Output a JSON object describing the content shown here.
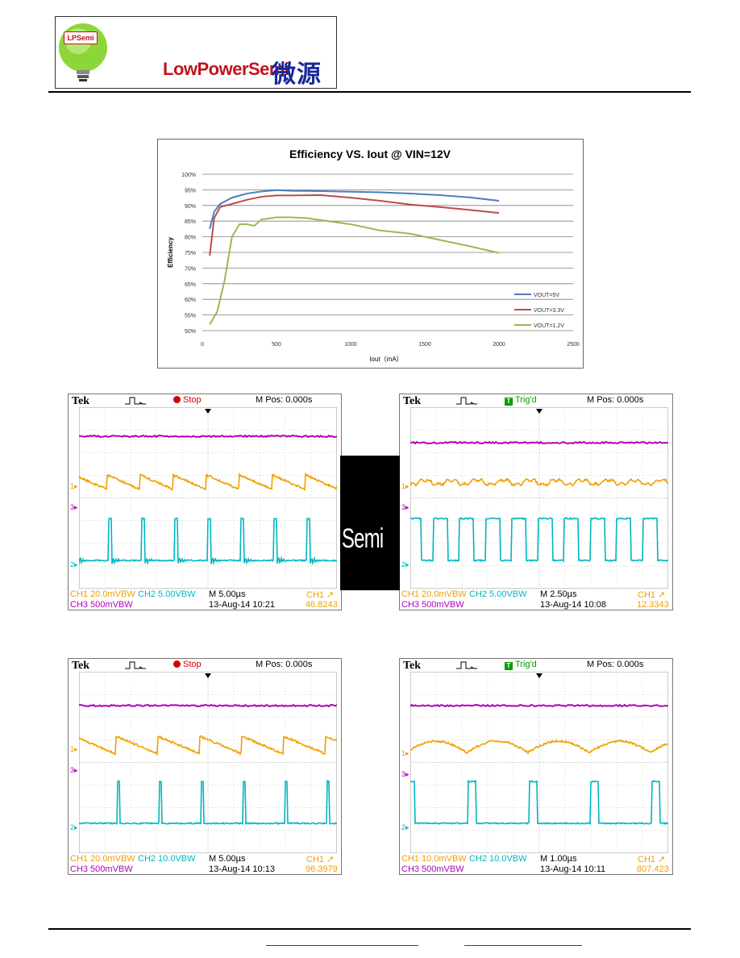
{
  "logo": {
    "badge": "LPSemi",
    "wordmark": "LowPowerSemi",
    "chinese": "微源半導體"
  },
  "chart_data": {
    "type": "line",
    "title": "Efficiency VS. Iout @ VIN=12V",
    "xlabel": "Iout（mA）",
    "ylabel": "Efficiency",
    "xlim": [
      0,
      2500
    ],
    "ylim": [
      50,
      100
    ],
    "x_ticks": [
      "0",
      "500",
      "1000",
      "1500",
      "2000",
      "2500"
    ],
    "y_ticks": [
      "50%",
      "55%",
      "60%",
      "65%",
      "70%",
      "75%",
      "80%",
      "85%",
      "90%",
      "95%",
      "100%"
    ],
    "grid": true,
    "legend": "right",
    "series": [
      {
        "name": "VOUT=5V",
        "color": "#4a7ebb",
        "x": [
          50,
          80,
          120,
          200,
          300,
          400,
          500,
          600,
          800,
          1000,
          1200,
          1400,
          1600,
          1800,
          2000
        ],
        "y": [
          82.5,
          88,
          90.5,
          92.5,
          93.8,
          94.5,
          94.9,
          94.7,
          94.6,
          94.4,
          94.2,
          93.8,
          93.3,
          92.6,
          91.5
        ]
      },
      {
        "name": "VOUT=3.3V",
        "color": "#be4b48",
        "x": [
          50,
          80,
          120,
          200,
          300,
          400,
          500,
          600,
          800,
          1000,
          1200,
          1400,
          1600,
          1800,
          2000
        ],
        "y": [
          74,
          86,
          89.5,
          90.5,
          91.8,
          92.8,
          93.2,
          93.2,
          93.3,
          92.5,
          91.5,
          90.3,
          89.5,
          88.6,
          87.6
        ]
      },
      {
        "name": "VOUT=1.2V",
        "color": "#98b954",
        "x": [
          50,
          100,
          150,
          200,
          250,
          300,
          350,
          400,
          500,
          600,
          700,
          800,
          1000,
          1200,
          1400,
          1600,
          1800,
          2000
        ],
        "y": [
          52,
          56,
          66,
          80,
          84,
          84,
          83.5,
          85.5,
          86.2,
          86.2,
          86,
          85.3,
          84,
          82,
          81,
          79,
          77,
          74.8
        ]
      }
    ]
  },
  "scopes": [
    {
      "brand": "Tek",
      "status": "Stop",
      "status_kind": "stop",
      "mpos": "M Pos: 0.000s",
      "ch1_scale": "CH1  20.0mVBW",
      "ch2_scale": "CH2  5.00VBW",
      "ch3_scale": "CH3  500mVBW",
      "timebase": "M 5.00µs",
      "date": "13-Aug-14 10:21",
      "trig_label": "CH1 ↗",
      "trig_value": "46.8243",
      "colors": {
        "ch1": "#f0a000",
        "ch2": "#00b6c0",
        "ch3": "#b000b8"
      }
    },
    {
      "brand": "Tek",
      "status": "Trig'd",
      "status_kind": "trig",
      "mpos": "M Pos: 0.000s",
      "ch1_scale": "CH1  20.0mVBW",
      "ch2_scale": "CH2  5.00VBW",
      "ch3_scale": "CH3  500mVBW",
      "timebase": "M 2.50µs",
      "date": "13-Aug-14 10:08",
      "trig_label": "CH1 ↗",
      "trig_value": "12.3343",
      "colors": {
        "ch1": "#f0a000",
        "ch2": "#00b6c0",
        "ch3": "#b000b8"
      }
    },
    {
      "brand": "Tek",
      "status": "Stop",
      "status_kind": "stop",
      "mpos": "M Pos: 0.000s",
      "ch1_scale": "CH1  20.0mVBW",
      "ch2_scale": "CH2  10.0VBW",
      "ch3_scale": "CH3  500mVBW",
      "timebase": "M 5.00µs",
      "date": "13-Aug-14 10:13",
      "trig_label": "CH1 ↗",
      "trig_value": "96.3979",
      "colors": {
        "ch1": "#f0a000",
        "ch2": "#00b6c0",
        "ch3": "#b000b8"
      }
    },
    {
      "brand": "Tek",
      "status": "Trig'd",
      "status_kind": "trig",
      "mpos": "M Pos: 0.000s",
      "ch1_scale": "CH1  10.0mVBW",
      "ch2_scale": "CH2  10.0VBW",
      "ch3_scale": "CH3  500mVBW",
      "timebase": "M 1.00µs",
      "date": "13-Aug-14 10:11",
      "trig_label": "CH1 ↗",
      "trig_value": "807.423",
      "colors": {
        "ch1": "#f0a000",
        "ch2": "#00b6c0",
        "ch3": "#b000b8"
      }
    }
  ],
  "watermark": "Semi"
}
